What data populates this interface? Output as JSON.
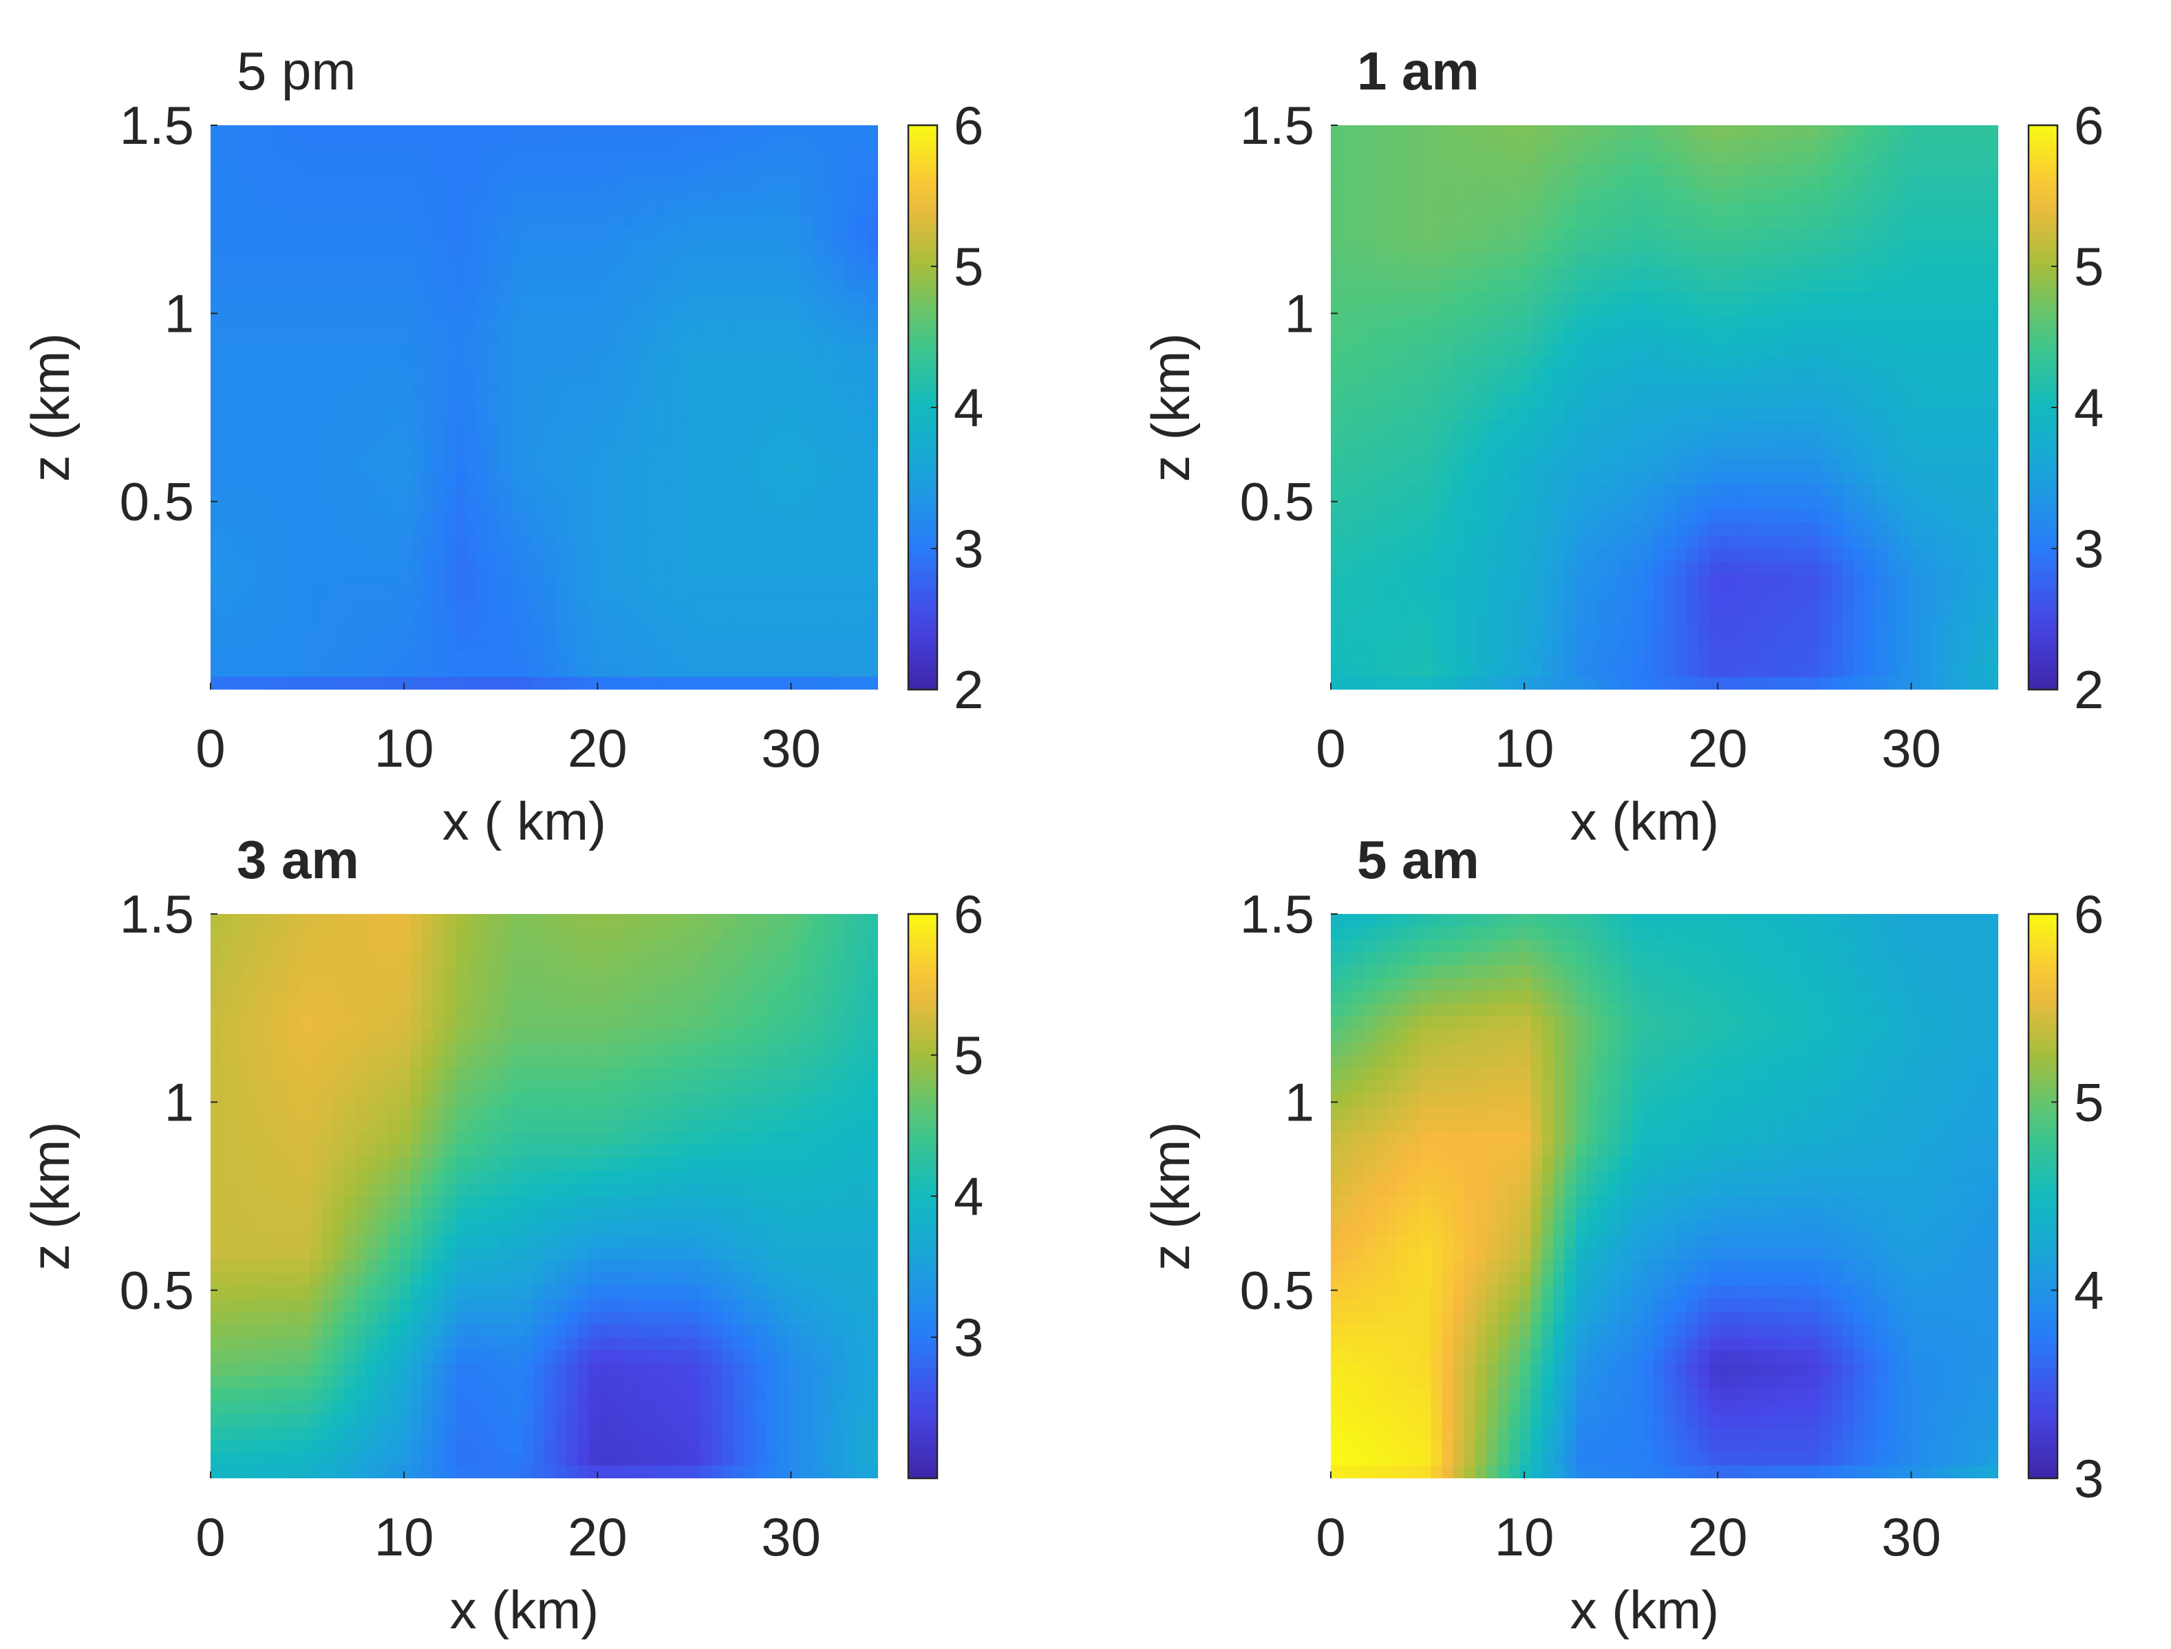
{
  "figure": {
    "description_panels": 4
  },
  "colors": {
    "colormap": "parula",
    "axis": "#262626",
    "background": "#ffffff"
  },
  "chart_data": [
    {
      "type": "heatmap",
      "title": "5 pm",
      "title_bold": false,
      "xlabel": "x ( km)",
      "ylabel": "z  (km)",
      "xlim": [
        0,
        34.5
      ],
      "ylim": [
        0,
        1.5
      ],
      "x_ticks": [
        0,
        10,
        20,
        30
      ],
      "x_tick_labels": [
        "0",
        "10",
        "20",
        "30"
      ],
      "y_ticks": [
        0.5,
        1,
        1.5
      ],
      "y_tick_labels": [
        "0.5",
        "1",
        "1.5"
      ],
      "colorbar": {
        "min": 2,
        "max": 6,
        "ticks": [
          2,
          3,
          4,
          5,
          6
        ],
        "tick_labels": [
          "2",
          "3",
          "4",
          "5",
          "6"
        ]
      },
      "x": [
        0,
        5,
        10,
        13,
        16,
        20,
        25,
        30,
        34.5
      ],
      "z": [
        0,
        0.05,
        0.3,
        0.6,
        0.9,
        1.2,
        1.5
      ],
      "values": [
        [
          2.8,
          2.7,
          2.7,
          2.7,
          2.7,
          2.8,
          2.8,
          2.8,
          2.9
        ],
        [
          3.2,
          3.2,
          3.1,
          3.0,
          3.0,
          3.3,
          3.4,
          3.4,
          3.4
        ],
        [
          3.3,
          3.2,
          3.2,
          2.9,
          3.1,
          3.4,
          3.5,
          3.5,
          3.5
        ],
        [
          3.2,
          3.2,
          3.3,
          3.0,
          3.3,
          3.4,
          3.5,
          3.6,
          3.5
        ],
        [
          3.2,
          3.2,
          3.2,
          3.1,
          3.3,
          3.3,
          3.5,
          3.5,
          3.4
        ],
        [
          3.1,
          3.1,
          3.1,
          3.0,
          3.2,
          3.2,
          3.3,
          3.3,
          2.9
        ],
        [
          3.1,
          3.0,
          3.0,
          3.0,
          3.0,
          3.0,
          3.0,
          3.1,
          3.1
        ]
      ]
    },
    {
      "type": "heatmap",
      "title": "1 am",
      "title_bold": true,
      "xlabel": "x (km)",
      "ylabel": "z  (km)",
      "xlim": [
        0,
        34.5
      ],
      "ylim": [
        0,
        1.5
      ],
      "x_ticks": [
        0,
        10,
        20,
        30
      ],
      "x_tick_labels": [
        "0",
        "10",
        "20",
        "30"
      ],
      "y_ticks": [
        0.5,
        1,
        1.5
      ],
      "y_tick_labels": [
        "0.5",
        "1",
        "1.5"
      ],
      "colorbar": {
        "min": 2,
        "max": 6,
        "ticks": [
          2,
          3,
          4,
          5,
          6
        ],
        "tick_labels": [
          "2",
          "3",
          "4",
          "5",
          "6"
        ]
      },
      "x": [
        0,
        5,
        10,
        13,
        16,
        20,
        25,
        30,
        34.5
      ],
      "z": [
        0,
        0.05,
        0.3,
        0.6,
        0.9,
        1.2,
        1.5
      ],
      "values": [
        [
          3.9,
          3.9,
          3.4,
          3.3,
          3.0,
          2.9,
          3.0,
          3.3,
          3.7
        ],
        [
          4.0,
          4.1,
          3.6,
          3.2,
          3.0,
          2.6,
          2.7,
          3.3,
          3.8
        ],
        [
          4.1,
          4.0,
          3.7,
          3.3,
          3.1,
          2.5,
          2.6,
          3.3,
          3.6
        ],
        [
          4.3,
          4.2,
          3.8,
          3.6,
          3.5,
          3.3,
          3.3,
          3.7,
          3.7
        ],
        [
          4.5,
          4.4,
          4.2,
          3.9,
          3.8,
          3.9,
          3.8,
          3.9,
          3.9
        ],
        [
          4.6,
          4.7,
          4.6,
          4.4,
          4.3,
          4.4,
          4.3,
          4.1,
          4.1
        ],
        [
          4.6,
          4.7,
          4.8,
          4.7,
          4.6,
          4.8,
          4.7,
          4.3,
          4.3
        ]
      ]
    },
    {
      "type": "heatmap",
      "title": "3 am",
      "title_bold": true,
      "xlabel": "x (km)",
      "ylabel": "z  (km)",
      "xlim": [
        0,
        34.5
      ],
      "ylim": [
        0,
        1.5
      ],
      "x_ticks": [
        0,
        10,
        20,
        30
      ],
      "x_tick_labels": [
        "0",
        "10",
        "20",
        "30"
      ],
      "y_ticks": [
        0.5,
        1,
        1.5
      ],
      "y_tick_labels": [
        "0.5",
        "1",
        "1.5"
      ],
      "colorbar": {
        "min": 2,
        "max": 6,
        "ticks": [
          3,
          4,
          5,
          6
        ],
        "tick_labels": [
          "3",
          "4",
          "5",
          "6"
        ]
      },
      "x": [
        0,
        5,
        10,
        13,
        16,
        20,
        25,
        30,
        34.5
      ],
      "z": [
        0,
        0.05,
        0.3,
        0.6,
        0.9,
        1.2,
        1.5
      ],
      "values": [
        [
          3.9,
          3.8,
          3.3,
          3.0,
          2.9,
          2.6,
          2.7,
          3.2,
          3.6
        ],
        [
          4.0,
          3.9,
          3.4,
          2.9,
          3.0,
          2.3,
          2.4,
          3.2,
          3.7
        ],
        [
          4.7,
          4.6,
          3.7,
          3.0,
          3.1,
          2.4,
          2.5,
          3.2,
          3.6
        ],
        [
          5.2,
          5.2,
          4.4,
          3.8,
          3.7,
          3.4,
          3.4,
          3.7,
          3.7
        ],
        [
          5.2,
          5.3,
          5.0,
          4.5,
          4.3,
          4.3,
          4.1,
          4.0,
          3.9
        ],
        [
          5.2,
          5.4,
          5.3,
          4.9,
          4.7,
          4.7,
          4.6,
          4.4,
          4.1
        ],
        [
          5.1,
          5.3,
          5.4,
          5.0,
          4.8,
          4.9,
          4.8,
          4.6,
          4.2
        ]
      ]
    },
    {
      "type": "heatmap",
      "title": "5 am",
      "title_bold": true,
      "xlabel": "x (km)",
      "ylabel": "z  (km)",
      "xlim": [
        0,
        34.5
      ],
      "ylim": [
        0,
        1.5
      ],
      "x_ticks": [
        0,
        10,
        20,
        30
      ],
      "x_tick_labels": [
        "0",
        "10",
        "20",
        "30"
      ],
      "y_ticks": [
        0.5,
        1,
        1.5
      ],
      "y_tick_labels": [
        "0.5",
        "1",
        "1.5"
      ],
      "colorbar": {
        "min": 3,
        "max": 6,
        "ticks": [
          3,
          4,
          5,
          6
        ],
        "tick_labels": [
          "3",
          "4",
          "5",
          "6"
        ]
      },
      "x": [
        0,
        5,
        10,
        13,
        16,
        20,
        25,
        30,
        34.5
      ],
      "z": [
        0,
        0.05,
        0.3,
        0.6,
        0.9,
        1.2,
        1.5
      ],
      "values": [
        [
          5.9,
          5.8,
          4.5,
          3.9,
          3.8,
          3.7,
          3.8,
          4.0,
          4.3
        ],
        [
          6.0,
          5.9,
          4.6,
          3.8,
          3.8,
          3.5,
          3.5,
          3.9,
          4.1
        ],
        [
          5.9,
          5.8,
          4.9,
          4.0,
          3.8,
          3.2,
          3.3,
          3.9,
          4.0
        ],
        [
          5.6,
          5.8,
          5.4,
          4.4,
          4.1,
          3.9,
          3.9,
          4.1,
          4.0
        ],
        [
          5.4,
          5.6,
          5.6,
          4.9,
          4.5,
          4.4,
          4.3,
          4.2,
          4.1
        ],
        [
          4.9,
          5.3,
          5.4,
          5.0,
          4.7,
          4.6,
          4.5,
          4.3,
          4.2
        ],
        [
          4.4,
          4.6,
          4.8,
          4.7,
          4.5,
          4.5,
          4.4,
          4.2,
          4.2
        ]
      ]
    }
  ]
}
